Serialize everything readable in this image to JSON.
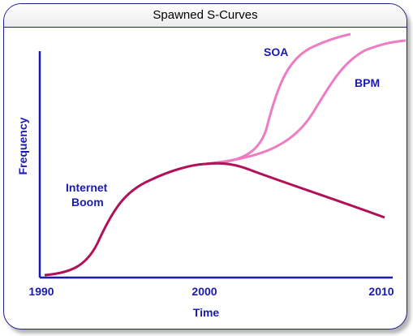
{
  "title": "Spawned S-Curves",
  "axes": {
    "y_label": "Frequency",
    "x_label": "Time",
    "x_ticks": [
      "1990",
      "2000",
      "2010"
    ]
  },
  "curves": {
    "internet_boom": {
      "label_line1": "Internet",
      "label_line2": "Boom"
    },
    "soa": {
      "label": "SOA"
    },
    "bpm": {
      "label": "BPM"
    }
  },
  "colors": {
    "axis": "#1a1ab4",
    "text": "#1a1ab4",
    "frame": "#1d1d8a",
    "internet_curve": "#b0125a",
    "spawn_curves": "#ee7cc2"
  }
}
